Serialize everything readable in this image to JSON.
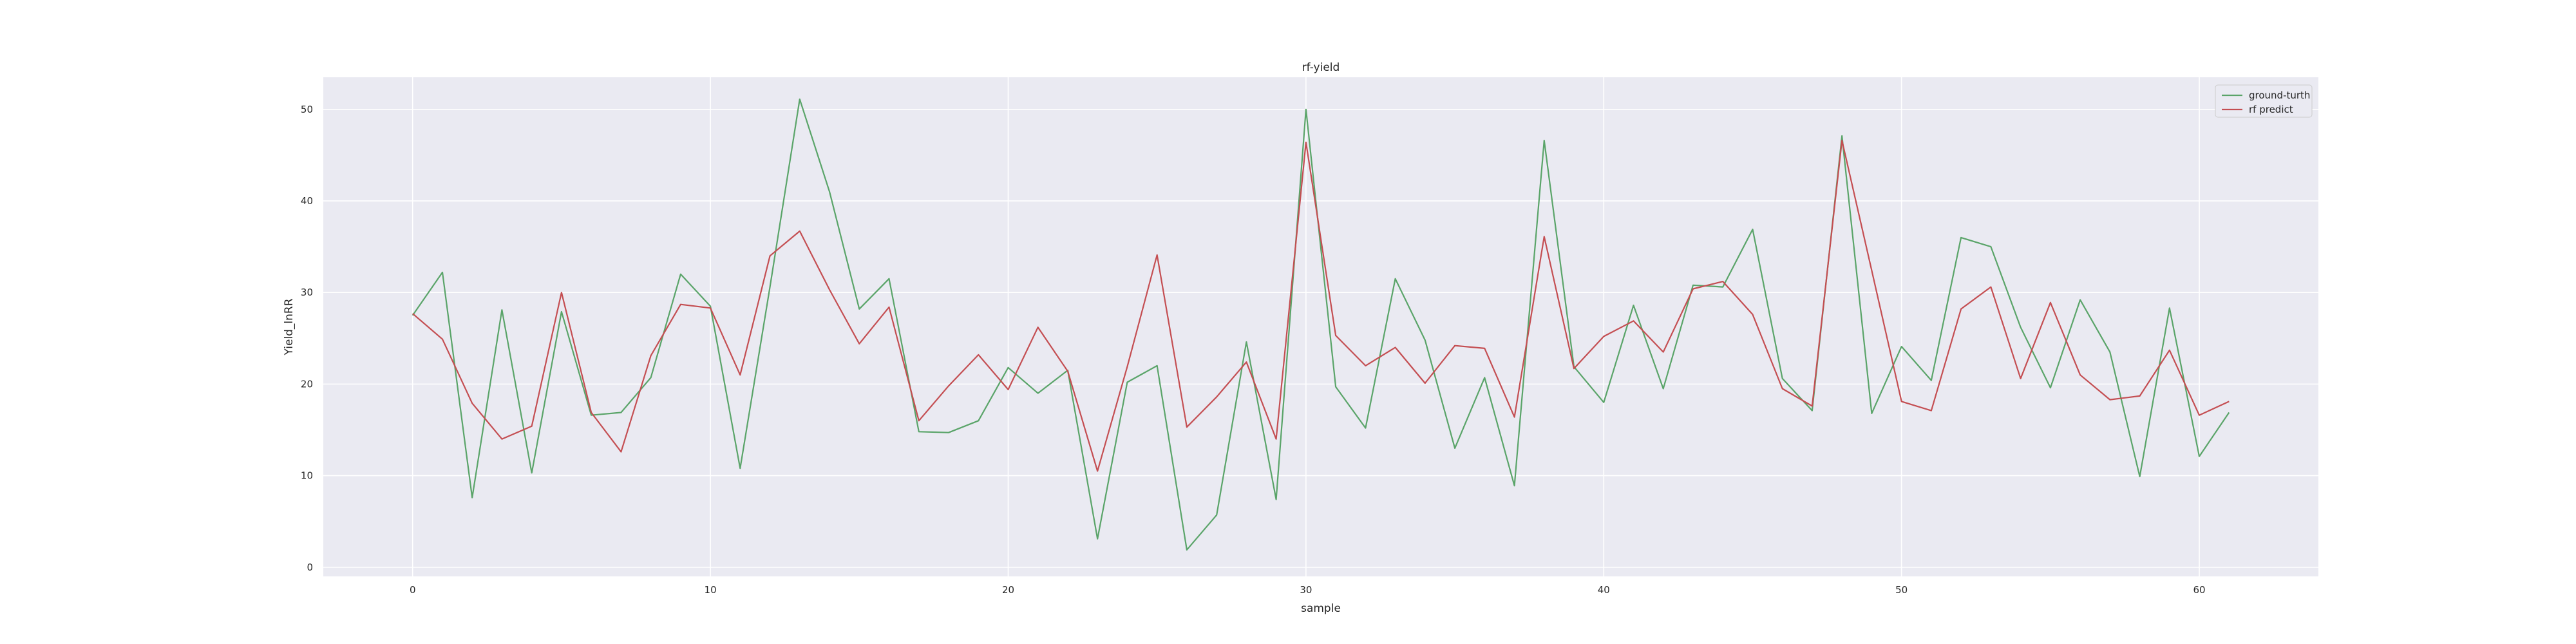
{
  "chart_data": {
    "type": "line",
    "title": "rf-yield",
    "xlabel": "sample",
    "ylabel": "Yield_lnRR",
    "xlim": [
      -3,
      64
    ],
    "ylim": [
      -1,
      53.5
    ],
    "xticks": [
      0,
      10,
      20,
      30,
      40,
      50,
      60
    ],
    "yticks": [
      0,
      10,
      20,
      30,
      40,
      50
    ],
    "grid": true,
    "legend_position": "top-right",
    "colors": {
      "background": "#eaeaf2",
      "grid": "#ffffff",
      "ground_truth": "#5aa469",
      "predict": "#c44e52"
    },
    "x": [
      0,
      1,
      2,
      3,
      4,
      5,
      6,
      7,
      8,
      9,
      10,
      11,
      12,
      13,
      14,
      15,
      16,
      17,
      18,
      19,
      20,
      21,
      22,
      23,
      24,
      25,
      26,
      27,
      28,
      29,
      30,
      31,
      32,
      33,
      34,
      35,
      36,
      37,
      38,
      39,
      40,
      41,
      42,
      43,
      44,
      45,
      46,
      47,
      48,
      49,
      50,
      51,
      52,
      53,
      54,
      55,
      56,
      57,
      58,
      59,
      60,
      61
    ],
    "series": [
      {
        "name": "ground-turth",
        "values": [
          27.5,
          32.2,
          7.6,
          28.1,
          10.3,
          27.9,
          16.6,
          16.9,
          20.7,
          32.0,
          28.5,
          10.8,
          30.6,
          51.1,
          41.0,
          28.2,
          31.5,
          14.8,
          14.7,
          16.0,
          21.8,
          19.0,
          21.5,
          3.1,
          20.2,
          22.0,
          1.9,
          5.7,
          24.6,
          7.4,
          50.0,
          19.7,
          15.2,
          31.5,
          24.8,
          13.0,
          20.7,
          8.9,
          46.6,
          21.9,
          18.0,
          28.6,
          19.5,
          30.8,
          30.6,
          36.9,
          20.6,
          17.1,
          47.1,
          16.8,
          24.1,
          20.4,
          36.0,
          35.0,
          26.2,
          19.6,
          29.2,
          23.5,
          9.9,
          28.3,
          12.1,
          16.9
        ]
      },
      {
        "name": "rf predict",
        "values": [
          27.7,
          24.9,
          17.9,
          14.0,
          15.4,
          30.0,
          16.9,
          12.6,
          23.1,
          28.7,
          28.3,
          21.0,
          34.0,
          36.7,
          30.3,
          24.4,
          28.4,
          16.0,
          19.8,
          23.2,
          19.4,
          26.2,
          21.4,
          10.5,
          21.9,
          34.1,
          15.3,
          18.6,
          22.4,
          14.0,
          46.4,
          25.3,
          22.0,
          24.0,
          20.1,
          24.2,
          23.9,
          16.4,
          36.1,
          21.7,
          25.2,
          26.9,
          23.5,
          30.4,
          31.2,
          27.6,
          19.5,
          17.6,
          46.6,
          32.4,
          18.1,
          17.1,
          28.2,
          30.6,
          20.6,
          28.9,
          21.0,
          18.3,
          18.7,
          23.7,
          16.6,
          18.1
        ]
      }
    ]
  }
}
